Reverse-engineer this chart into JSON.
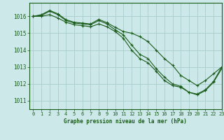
{
  "title": "Graphe pression niveau de la mer (hPa)",
  "background_color": "#cce8e8",
  "grid_color": "#aacccc",
  "line_color": "#1a5c1a",
  "marker_color": "#1a5c1a",
  "xlim": [
    -0.5,
    23
  ],
  "ylim": [
    1010.5,
    1016.8
  ],
  "yticks": [
    1011,
    1012,
    1013,
    1014,
    1015,
    1016
  ],
  "xticks": [
    0,
    1,
    2,
    3,
    4,
    5,
    6,
    7,
    8,
    9,
    10,
    11,
    12,
    13,
    14,
    15,
    16,
    17,
    18,
    19,
    20,
    21,
    22,
    23
  ],
  "series1": [
    1016.0,
    1016.05,
    1016.3,
    1016.1,
    1015.75,
    1015.6,
    1015.55,
    1015.5,
    1015.75,
    1015.55,
    1015.2,
    1014.9,
    1014.3,
    1013.75,
    1013.5,
    1012.9,
    1012.4,
    1012.0,
    1011.85,
    1011.5,
    1011.4,
    1011.65,
    1012.15,
    1013.0
  ],
  "series2": [
    1016.0,
    1016.1,
    1016.35,
    1016.15,
    1015.8,
    1015.65,
    1015.6,
    1015.55,
    1015.82,
    1015.62,
    1015.35,
    1015.1,
    1015.0,
    1014.8,
    1014.5,
    1014.0,
    1013.5,
    1013.1,
    1012.5,
    1012.2,
    1011.9,
    1012.2,
    1012.6,
    1013.0
  ],
  "series3": [
    1016.0,
    1016.0,
    1016.1,
    1015.9,
    1015.65,
    1015.5,
    1015.45,
    1015.38,
    1015.55,
    1015.38,
    1015.1,
    1014.7,
    1014.0,
    1013.5,
    1013.25,
    1012.75,
    1012.2,
    1011.9,
    1011.8,
    1011.5,
    1011.35,
    1011.6,
    1012.1,
    1012.9
  ]
}
